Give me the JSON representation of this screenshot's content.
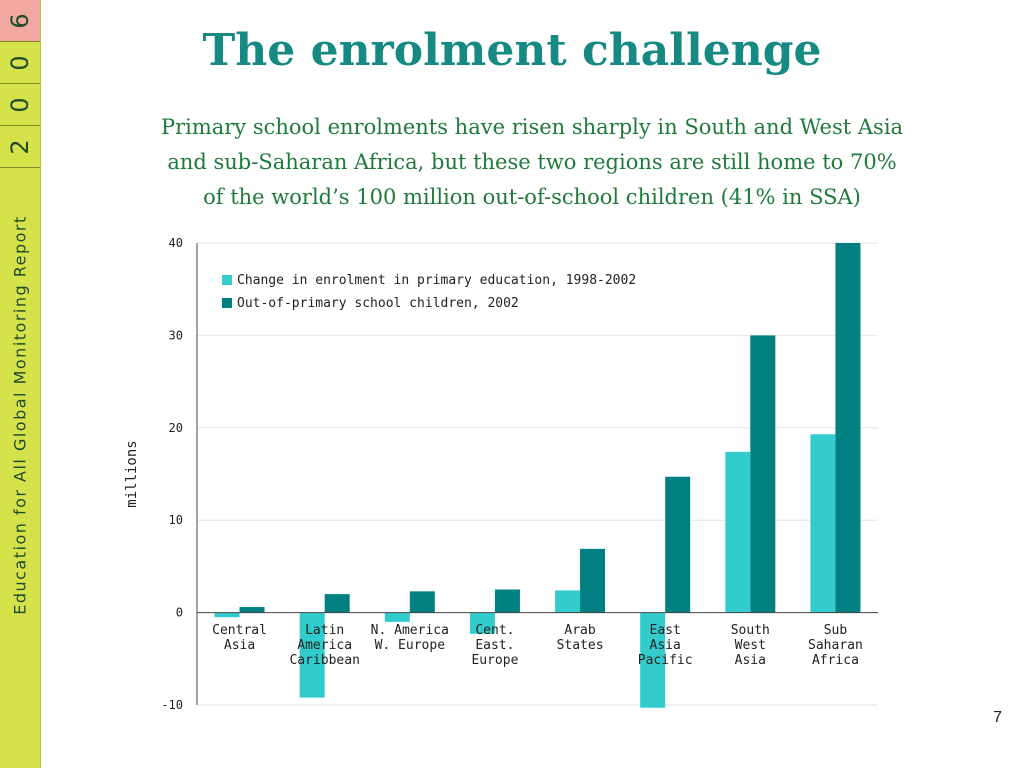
{
  "sidebar": {
    "digits": [
      "6",
      "0",
      "0",
      "2"
    ],
    "title": "Education for All Global Monitoring Report"
  },
  "title": "The enrolment challenge",
  "subtitle_lines": [
    "Primary school enrolments have risen sharply in South and West Asia",
    "and sub-Saharan Africa, but these two regions are still home to 70%",
    "of the world’s 100 million out-of-school children (41% in SSA)"
  ],
  "page_number": "7",
  "colors": {
    "title": "#168a82",
    "subtitle": "#1f7a3a",
    "sidebar": "#d6e24a",
    "series1": "#33cccc",
    "series2": "#008080"
  },
  "chart_data": {
    "type": "bar",
    "categories": [
      [
        "Central",
        "Asia"
      ],
      [
        "Latin",
        "America",
        "Caribbean"
      ],
      [
        "N. America",
        "W. Europe"
      ],
      [
        "Cent.",
        "East.",
        "Europe"
      ],
      [
        "Arab",
        "States"
      ],
      [
        "East",
        "Asia",
        "Pacific"
      ],
      [
        "South",
        "West",
        "Asia"
      ],
      [
        "Sub",
        "Saharan",
        "Africa"
      ]
    ],
    "series": [
      {
        "name": "Change in enrolment in primary education, 1998-2002",
        "color": "#33cccc",
        "values": [
          -0.5,
          -9.2,
          -1.0,
          -2.3,
          2.4,
          -10.3,
          17.4,
          19.3
        ]
      },
      {
        "name": "Out-of-primary school children, 2002",
        "color": "#008080",
        "values": [
          0.6,
          2.0,
          2.3,
          2.5,
          6.9,
          14.7,
          30.0,
          40.0
        ]
      }
    ],
    "ylabel": "millions",
    "ylim": [
      -10,
      40
    ],
    "yticks": [
      "-10",
      "0",
      "10",
      "20",
      "30",
      "40"
    ],
    "grid": true,
    "legend_position": "top-left"
  }
}
